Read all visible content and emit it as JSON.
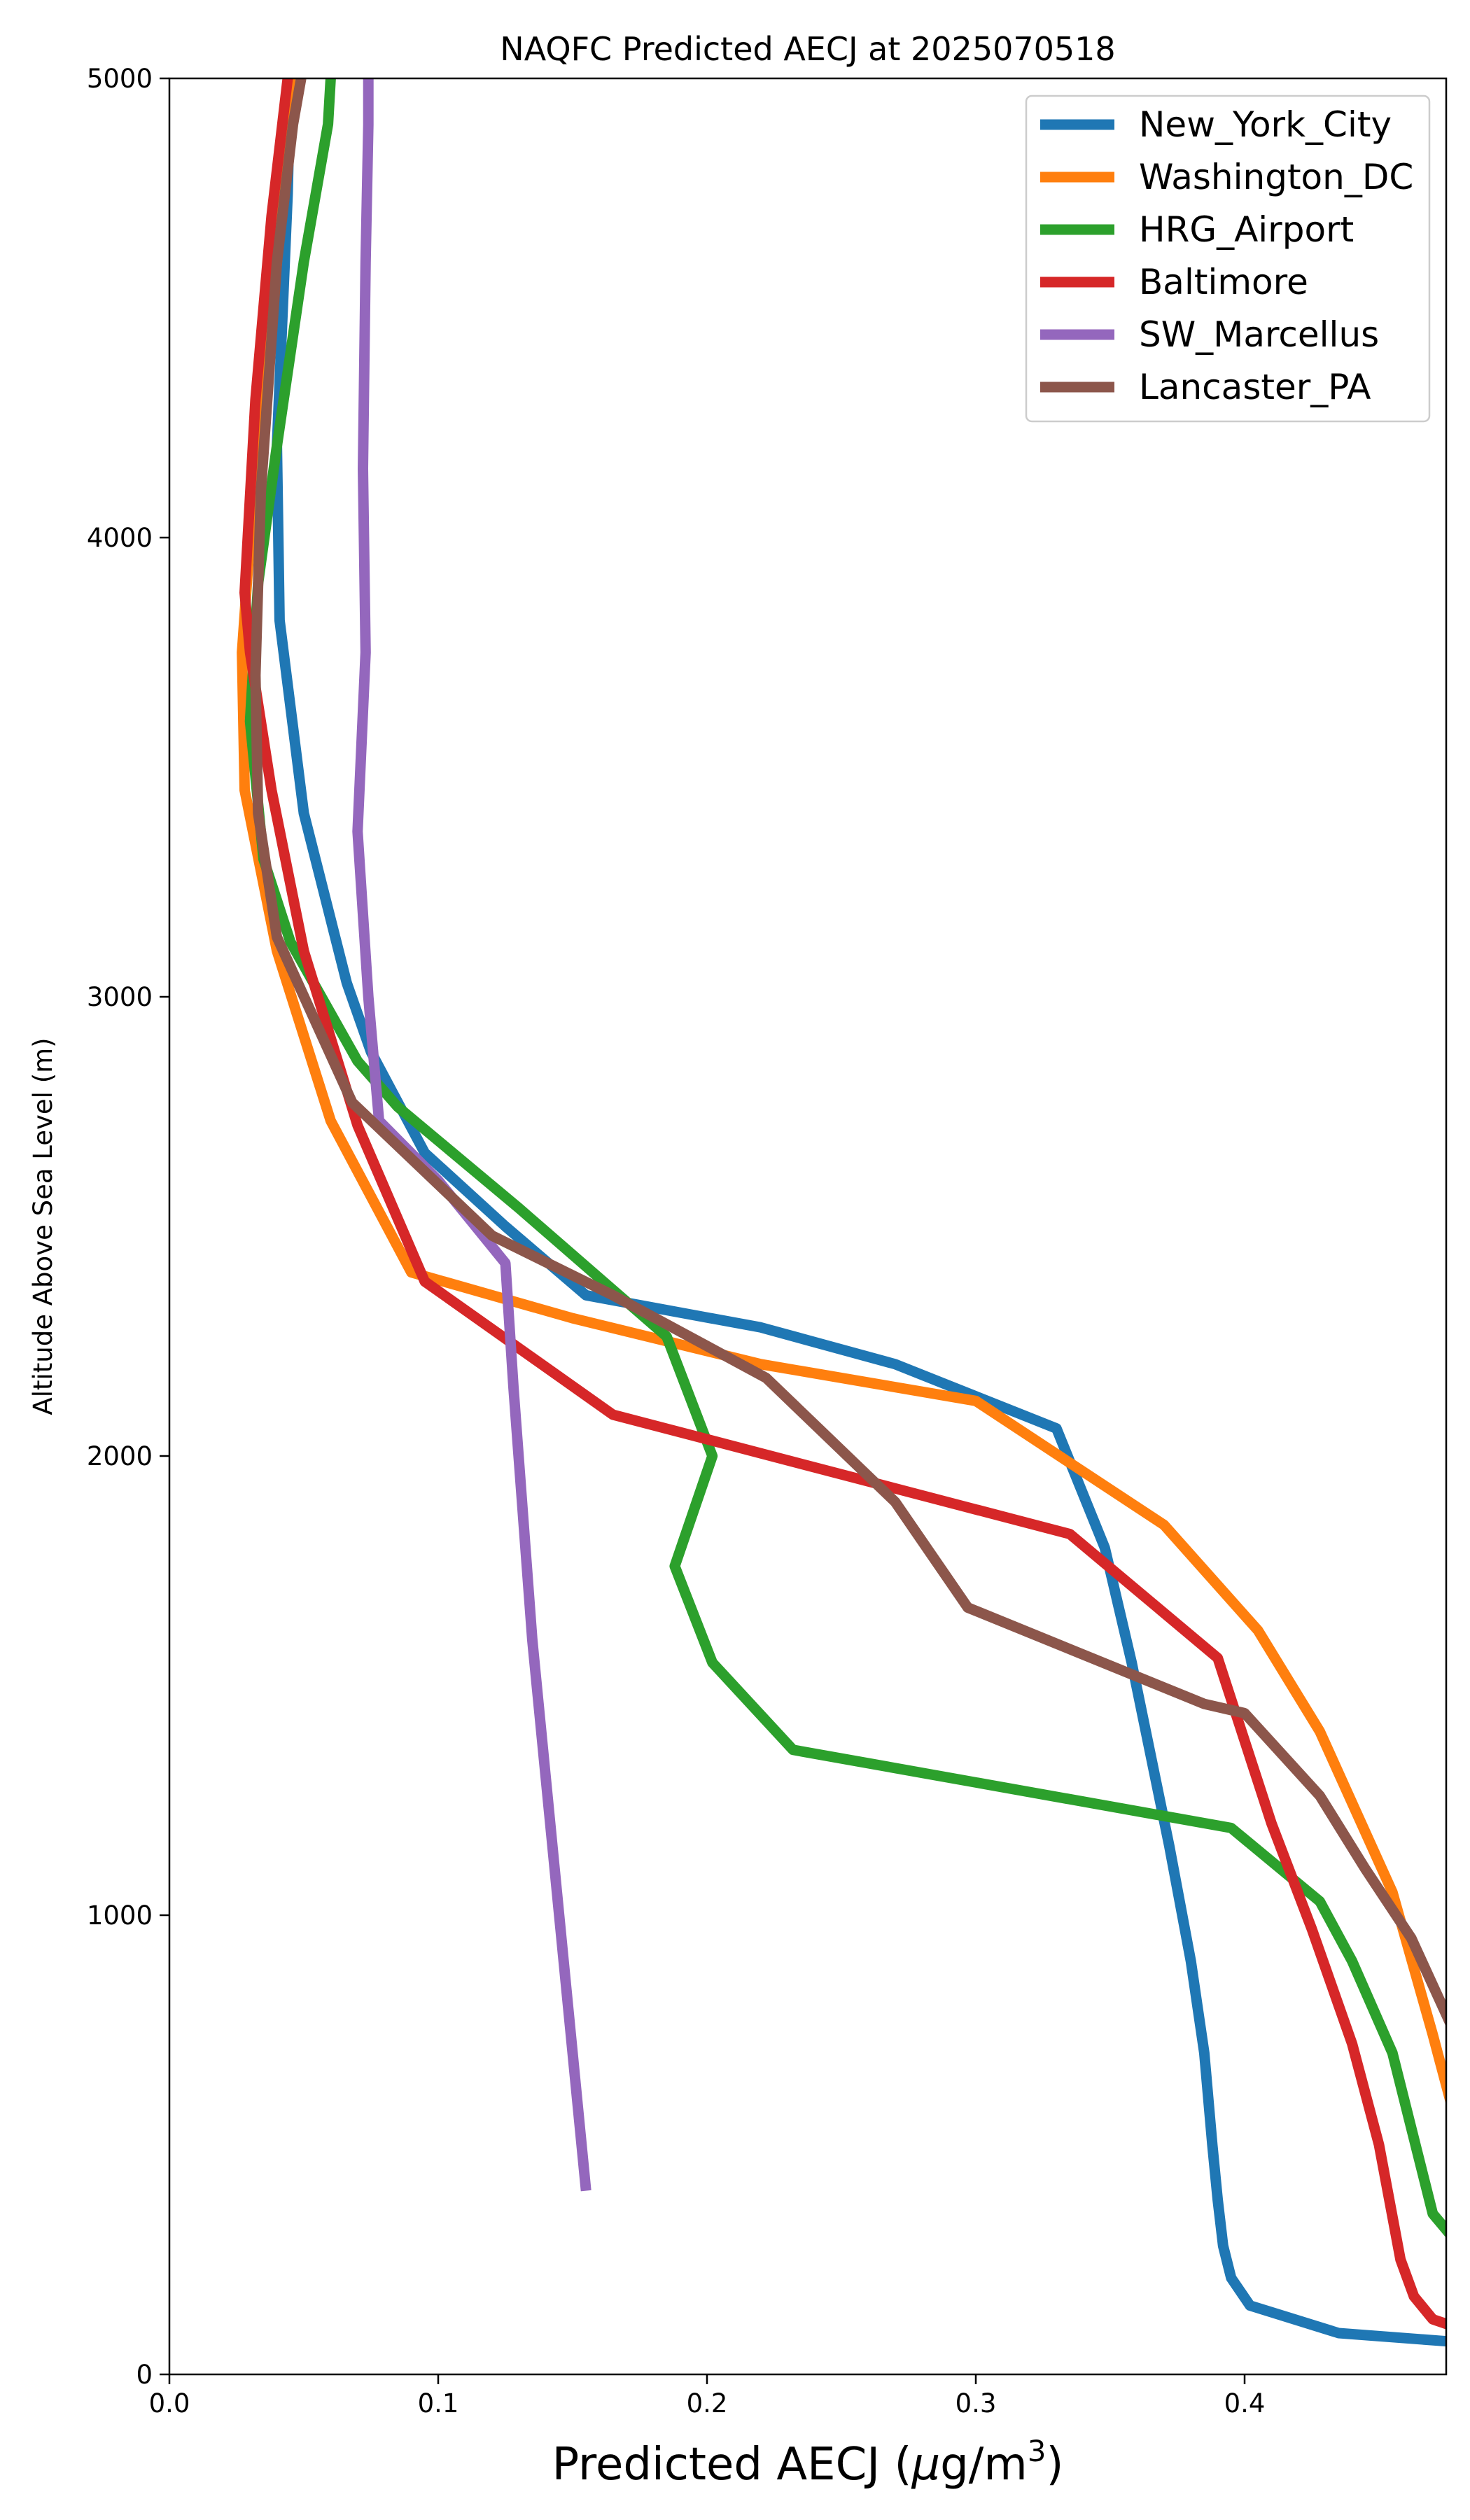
{
  "chart_data": {
    "type": "line",
    "title": "NAQFC Predicted AECJ at 2025070518",
    "xlabel": "Predicted AECJ (μg/m³)",
    "xlabel_parts": {
      "main": "Predicted AECJ (",
      "mu": "μ",
      "unit": "g/m",
      "sup": "3",
      "close": ")"
    },
    "ylabel": "Altitude Above Sea Level (m)",
    "xlim": [
      0,
      0.475
    ],
    "ylim": [
      0,
      5000
    ],
    "xticks": [
      0.0,
      0.1,
      0.2,
      0.3,
      0.4
    ],
    "xtick_labels": [
      "0.0",
      "0.1",
      "0.2",
      "0.3",
      "0.4"
    ],
    "yticks": [
      0,
      1000,
      2000,
      3000,
      4000,
      5000
    ],
    "ytick_labels": [
      "0",
      "1000",
      "2000",
      "3000",
      "4000",
      "5000"
    ],
    "grid": false,
    "legend_position": "top-right",
    "series": [
      {
        "name": "New_York_City",
        "color": "#1f77b4",
        "points": [
          [
            0.48,
            70
          ],
          [
            0.435,
            90
          ],
          [
            0.402,
            150
          ],
          [
            0.395,
            210
          ],
          [
            0.392,
            280
          ],
          [
            0.39,
            380
          ],
          [
            0.388,
            500
          ],
          [
            0.385,
            700
          ],
          [
            0.38,
            900
          ],
          [
            0.372,
            1150
          ],
          [
            0.365,
            1350
          ],
          [
            0.358,
            1550
          ],
          [
            0.348,
            1800
          ],
          [
            0.33,
            2060
          ],
          [
            0.27,
            2200
          ],
          [
            0.22,
            2280
          ],
          [
            0.155,
            2350
          ],
          [
            0.125,
            2500
          ],
          [
            0.095,
            2660
          ],
          [
            0.075,
            2880
          ],
          [
            0.066,
            3030
          ],
          [
            0.05,
            3400
          ],
          [
            0.041,
            3820
          ],
          [
            0.04,
            4200
          ],
          [
            0.044,
            4750
          ],
          [
            0.045,
            5000
          ]
        ]
      },
      {
        "name": "Washington_DC",
        "color": "#ff7f0e",
        "points": [
          [
            0.48,
            520
          ],
          [
            0.47,
            740
          ],
          [
            0.455,
            1050
          ],
          [
            0.428,
            1400
          ],
          [
            0.405,
            1620
          ],
          [
            0.37,
            1850
          ],
          [
            0.3,
            2120
          ],
          [
            0.22,
            2200
          ],
          [
            0.15,
            2300
          ],
          [
            0.09,
            2400
          ],
          [
            0.06,
            2730
          ],
          [
            0.04,
            3100
          ],
          [
            0.028,
            3450
          ],
          [
            0.027,
            3750
          ],
          [
            0.03,
            4000
          ],
          [
            0.04,
            4600
          ],
          [
            0.045,
            5000
          ]
        ]
      },
      {
        "name": "HRG_Airport",
        "color": "#2ca02c",
        "points": [
          [
            0.48,
            280
          ],
          [
            0.47,
            350
          ],
          [
            0.455,
            700
          ],
          [
            0.44,
            900
          ],
          [
            0.428,
            1030
          ],
          [
            0.395,
            1190
          ],
          [
            0.232,
            1360
          ],
          [
            0.202,
            1550
          ],
          [
            0.188,
            1760
          ],
          [
            0.202,
            2000
          ],
          [
            0.185,
            2260
          ],
          [
            0.13,
            2540
          ],
          [
            0.085,
            2760
          ],
          [
            0.07,
            2860
          ],
          [
            0.045,
            3120
          ],
          [
            0.035,
            3300
          ],
          [
            0.03,
            3600
          ],
          [
            0.033,
            3900
          ],
          [
            0.04,
            4200
          ],
          [
            0.05,
            4600
          ],
          [
            0.059,
            4900
          ],
          [
            0.06,
            5000
          ]
        ]
      },
      {
        "name": "Baltimore",
        "color": "#d62728",
        "points": [
          [
            0.48,
            100
          ],
          [
            0.47,
            120
          ],
          [
            0.463,
            170
          ],
          [
            0.458,
            250
          ],
          [
            0.45,
            500
          ],
          [
            0.44,
            720
          ],
          [
            0.425,
            970
          ],
          [
            0.41,
            1200
          ],
          [
            0.39,
            1560
          ],
          [
            0.335,
            1830
          ],
          [
            0.165,
            2090
          ],
          [
            0.095,
            2380
          ],
          [
            0.07,
            2720
          ],
          [
            0.05,
            3100
          ],
          [
            0.038,
            3450
          ],
          [
            0.03,
            3750
          ],
          [
            0.028,
            3880
          ],
          [
            0.032,
            4300
          ],
          [
            0.038,
            4700
          ],
          [
            0.044,
            5000
          ]
        ]
      },
      {
        "name": "SW_Marcellus",
        "color": "#9467bd",
        "points": [
          [
            0.155,
            400
          ],
          [
            0.145,
            1000
          ],
          [
            0.135,
            1600
          ],
          [
            0.128,
            2150
          ],
          [
            0.125,
            2420
          ],
          [
            0.1,
            2600
          ],
          [
            0.078,
            2730
          ],
          [
            0.074,
            3000
          ],
          [
            0.07,
            3360
          ],
          [
            0.073,
            3750
          ],
          [
            0.072,
            4150
          ],
          [
            0.073,
            4600
          ],
          [
            0.074,
            4900
          ],
          [
            0.074,
            5000
          ]
        ]
      },
      {
        "name": "Lancaster_PA",
        "color": "#8c564b",
        "points": [
          [
            0.48,
            720
          ],
          [
            0.462,
            950
          ],
          [
            0.445,
            1100
          ],
          [
            0.428,
            1260
          ],
          [
            0.4,
            1440
          ],
          [
            0.385,
            1460
          ],
          [
            0.297,
            1670
          ],
          [
            0.27,
            1900
          ],
          [
            0.222,
            2170
          ],
          [
            0.165,
            2350
          ],
          [
            0.12,
            2480
          ],
          [
            0.068,
            2770
          ],
          [
            0.04,
            3130
          ],
          [
            0.033,
            3400
          ],
          [
            0.032,
            3700
          ],
          [
            0.034,
            4100
          ],
          [
            0.04,
            4600
          ],
          [
            0.046,
            4900
          ],
          [
            0.049,
            5000
          ]
        ]
      }
    ]
  }
}
